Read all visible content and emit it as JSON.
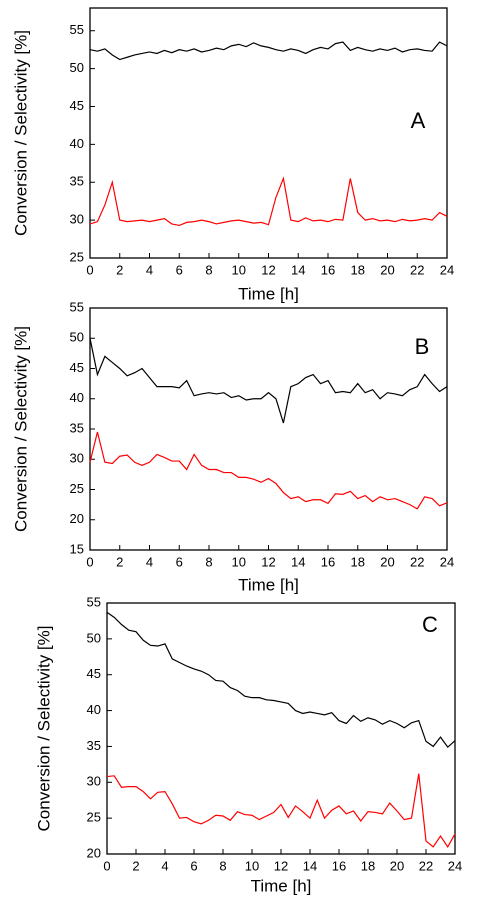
{
  "chart_data": [
    {
      "type": "line",
      "panel_label": "A",
      "x_label": "Time [h]",
      "y_label": "Conversion / Selectivity [%]",
      "x": [
        0,
        0.5,
        1,
        1.5,
        2,
        2.5,
        3,
        3.5,
        4,
        4.5,
        5,
        5.5,
        6,
        6.5,
        7,
        7.5,
        8,
        8.5,
        9,
        9.5,
        10,
        10.5,
        11,
        11.5,
        12,
        12.5,
        13,
        13.5,
        14,
        14.5,
        15,
        15.5,
        16,
        16.5,
        17,
        17.5,
        18,
        18.5,
        19,
        19.5,
        20,
        20.5,
        21,
        21.5,
        22,
        22.5,
        23,
        23.5,
        24
      ],
      "series": [
        {
          "color": "#000000",
          "values": [
            52.5,
            52.3,
            52.6,
            51.8,
            51.2,
            51.5,
            51.8,
            52.0,
            52.2,
            52.0,
            52.4,
            52.1,
            52.5,
            52.3,
            52.6,
            52.2,
            52.4,
            52.7,
            52.5,
            53.0,
            53.2,
            52.9,
            53.4,
            53.0,
            52.8,
            52.5,
            52.3,
            52.6,
            52.4,
            52.0,
            52.5,
            52.8,
            52.6,
            53.3,
            53.5,
            52.4,
            52.8,
            52.5,
            52.3,
            52.6,
            52.4,
            52.7,
            52.2,
            52.5,
            52.6,
            52.4,
            52.3,
            53.5,
            53.0
          ]
        },
        {
          "color": "#ff0000",
          "values": [
            29.5,
            29.8,
            32.0,
            35.0,
            30.0,
            29.8,
            29.9,
            30.0,
            29.8,
            30.0,
            30.2,
            29.5,
            29.3,
            29.7,
            29.8,
            30.0,
            29.8,
            29.5,
            29.7,
            29.9,
            30.0,
            29.8,
            29.6,
            29.7,
            29.4,
            33.0,
            35.5,
            30.0,
            29.8,
            30.3,
            29.9,
            30.0,
            29.8,
            30.1,
            30.0,
            35.5,
            31.0,
            30.0,
            30.2,
            29.9,
            30.0,
            29.8,
            30.1,
            29.9,
            30.0,
            30.2,
            30.0,
            31.0,
            30.5
          ]
        }
      ],
      "xlim": [
        0,
        24
      ],
      "xticks": [
        0,
        2,
        4,
        6,
        8,
        10,
        12,
        14,
        16,
        18,
        20,
        22,
        24
      ],
      "ylim": [
        25,
        58
      ],
      "yticks": [
        25,
        30,
        35,
        40,
        45,
        50,
        55
      ]
    },
    {
      "type": "line",
      "panel_label": "B",
      "x_label": "Time [h]",
      "y_label": "Conversion / Selectivity [%]",
      "x": [
        0,
        0.5,
        1,
        1.5,
        2,
        2.5,
        3,
        3.5,
        4,
        4.5,
        5,
        5.5,
        6,
        6.5,
        7,
        7.5,
        8,
        8.5,
        9,
        9.5,
        10,
        10.5,
        11,
        11.5,
        12,
        12.5,
        13,
        13.5,
        14,
        14.5,
        15,
        15.5,
        16,
        16.5,
        17,
        17.5,
        18,
        18.5,
        19,
        19.5,
        20,
        20.5,
        21,
        21.5,
        22,
        22.5,
        23,
        23.5,
        24
      ],
      "series": [
        {
          "color": "#000000",
          "values": [
            50,
            44,
            47,
            46,
            45,
            43.8,
            44.3,
            45,
            43.5,
            42,
            42,
            42,
            41.8,
            43,
            40.5,
            40.8,
            41,
            40.8,
            41,
            40.2,
            40.5,
            39.8,
            40,
            40,
            41,
            40,
            36,
            42,
            42.5,
            43.5,
            44,
            42.5,
            43,
            41,
            41.2,
            41,
            42.5,
            41,
            41.5,
            40,
            41,
            40.8,
            40.5,
            41.5,
            42,
            44,
            42.5,
            41.2,
            42
          ]
        },
        {
          "color": "#ff0000",
          "values": [
            29.5,
            34.5,
            29.5,
            29.3,
            30.5,
            30.7,
            29.5,
            29,
            29.5,
            30.8,
            30.3,
            29.7,
            29.7,
            28.3,
            30.8,
            29,
            28.3,
            28.3,
            27.8,
            27.8,
            27,
            27,
            26.7,
            26.2,
            26.8,
            26,
            24.5,
            23.5,
            23.8,
            23,
            23.3,
            23.3,
            22.7,
            24.3,
            24.2,
            24.7,
            23.5,
            24,
            23,
            23.8,
            23.3,
            23.5,
            23,
            22.5,
            21.8,
            23.8,
            23.5,
            22.3,
            22.8
          ]
        }
      ],
      "xlim": [
        0,
        24
      ],
      "xticks": [
        0,
        2,
        4,
        6,
        8,
        10,
        12,
        14,
        16,
        18,
        20,
        22,
        24
      ],
      "ylim": [
        15,
        55
      ],
      "yticks": [
        15,
        20,
        25,
        30,
        35,
        40,
        45,
        50,
        55
      ]
    },
    {
      "type": "line",
      "panel_label": "C",
      "x_label": "Time [h]",
      "y_label": "Conversion / Selectivity [%]",
      "x": [
        0,
        0.5,
        1,
        1.5,
        2,
        2.5,
        3,
        3.5,
        4,
        4.5,
        5,
        5.5,
        6,
        6.5,
        7,
        7.5,
        8,
        8.5,
        9,
        9.5,
        10,
        10.5,
        11,
        11.5,
        12,
        12.5,
        13,
        13.5,
        14,
        14.5,
        15,
        15.5,
        16,
        16.5,
        17,
        17.5,
        18,
        18.5,
        19,
        19.5,
        20,
        20.5,
        21,
        21.5,
        22,
        22.5,
        23,
        23.5,
        24
      ],
      "series": [
        {
          "color": "#000000",
          "values": [
            53.7,
            53,
            52,
            51.2,
            51,
            49.8,
            49.1,
            49,
            49.3,
            47.2,
            46.7,
            46.2,
            45.8,
            45.5,
            45,
            44.2,
            44.1,
            43.2,
            42.8,
            42,
            41.8,
            41.8,
            41.5,
            41.4,
            41.2,
            41,
            40,
            39.6,
            39.8,
            39.6,
            39.4,
            39.7,
            38.6,
            38.2,
            39.3,
            38.5,
            39,
            38.7,
            38.1,
            38.6,
            38.2,
            37.6,
            38.3,
            38.6,
            35.7,
            35,
            36.3,
            34.9,
            35.8
          ]
        },
        {
          "color": "#ff0000",
          "values": [
            30.8,
            30.9,
            29.3,
            29.4,
            29.4,
            28.7,
            27.7,
            28.6,
            28.7,
            27,
            25,
            25.1,
            24.5,
            24.2,
            24.7,
            25.4,
            25.3,
            24.7,
            25.9,
            25.5,
            25.4,
            24.8,
            25.3,
            25.8,
            26.9,
            25.1,
            26.7,
            25.9,
            25,
            27.5,
            25,
            26.1,
            26.7,
            25.6,
            26,
            24.6,
            25.9,
            25.8,
            25.6,
            27.1,
            26,
            24.8,
            25,
            31.2,
            21.8,
            21,
            22.5,
            21,
            22.8
          ]
        }
      ],
      "xlim": [
        0,
        24
      ],
      "xticks": [
        0,
        2,
        4,
        6,
        8,
        10,
        12,
        14,
        16,
        18,
        20,
        22,
        24
      ],
      "ylim": [
        20,
        55
      ],
      "yticks": [
        20,
        25,
        30,
        35,
        40,
        45,
        50,
        55
      ]
    }
  ]
}
